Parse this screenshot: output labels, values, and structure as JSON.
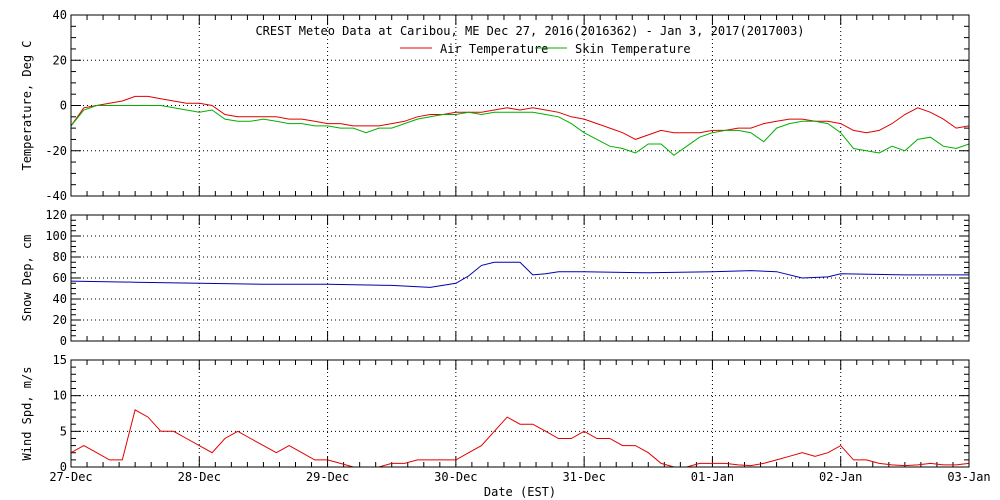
{
  "title": "CREST Meteo Data at Caribou, ME   Dec 27, 2016(2016362) - Jan  3, 2017(2017003)",
  "colors": {
    "air": "#e00000",
    "skin": "#00b000",
    "snow": "#0000b0",
    "wind": "#e00000",
    "frame": "#000000"
  },
  "chart_data": [
    {
      "type": "line",
      "ylabel": "Temperature, Deg C",
      "ylim": [
        -40,
        40
      ],
      "yticks": [
        "40",
        "20",
        "0",
        "-20",
        "-40"
      ],
      "xlim": [
        0,
        7
      ],
      "xticks": [
        "27-Dec",
        "28-Dec",
        "29-Dec",
        "30-Dec",
        "31-Dec",
        "01-Jan",
        "02-Jan",
        "03-Jan"
      ],
      "legend": {
        "placement": "top-center"
      },
      "grid": true,
      "series": [
        {
          "name": "Air Temperature",
          "color": "#e00000",
          "x": [
            0,
            0.1,
            0.2,
            0.3,
            0.4,
            0.5,
            0.6,
            0.7,
            0.8,
            0.9,
            1.0,
            1.1,
            1.2,
            1.3,
            1.4,
            1.5,
            1.6,
            1.7,
            1.8,
            1.9,
            2.0,
            2.1,
            2.2,
            2.3,
            2.4,
            2.5,
            2.6,
            2.7,
            2.8,
            2.9,
            3.0,
            3.1,
            3.2,
            3.3,
            3.4,
            3.5,
            3.6,
            3.7,
            3.8,
            3.9,
            4.0,
            4.1,
            4.2,
            4.3,
            4.4,
            4.5,
            4.6,
            4.7,
            4.8,
            4.9,
            5.0,
            5.1,
            5.2,
            5.3,
            5.4,
            5.5,
            5.6,
            5.7,
            5.8,
            5.9,
            6.0,
            6.1,
            6.2,
            6.3,
            6.4,
            6.5,
            6.6,
            6.7,
            6.8,
            6.9,
            7.0
          ],
          "y": [
            -9,
            -1,
            0,
            1,
            2,
            4,
            4,
            3,
            2,
            1,
            1,
            0,
            -4,
            -5,
            -5,
            -5,
            -5,
            -6,
            -6,
            -7,
            -8,
            -8,
            -9,
            -9,
            -9,
            -8,
            -7,
            -5,
            -4,
            -4,
            -3,
            -3,
            -3,
            -2,
            -1,
            -2,
            -1,
            -2,
            -3,
            -5,
            -6,
            -8,
            -10,
            -12,
            -15,
            -13,
            -11,
            -12,
            -12,
            -12,
            -11,
            -11,
            -10,
            -10,
            -8,
            -7,
            -6,
            -6,
            -7,
            -7,
            -8,
            -11,
            -12,
            -11,
            -8,
            -4,
            -1,
            -3,
            -6,
            -10,
            -9
          ]
        },
        {
          "name": "Skin Temperature",
          "color": "#00b000",
          "x": [
            0,
            0.1,
            0.2,
            0.3,
            0.4,
            0.5,
            0.6,
            0.7,
            0.8,
            0.9,
            1.0,
            1.1,
            1.2,
            1.3,
            1.4,
            1.5,
            1.6,
            1.7,
            1.8,
            1.9,
            2.0,
            2.1,
            2.2,
            2.3,
            2.4,
            2.5,
            2.6,
            2.7,
            2.8,
            2.9,
            3.0,
            3.1,
            3.2,
            3.3,
            3.4,
            3.5,
            3.6,
            3.7,
            3.8,
            3.9,
            4.0,
            4.1,
            4.2,
            4.3,
            4.4,
            4.5,
            4.6,
            4.7,
            4.8,
            4.9,
            5.0,
            5.1,
            5.2,
            5.3,
            5.4,
            5.5,
            5.6,
            5.7,
            5.8,
            5.9,
            6.0,
            6.1,
            6.2,
            6.3,
            6.4,
            6.5,
            6.6,
            6.7,
            6.8,
            6.9,
            7.0
          ],
          "y": [
            -9,
            -2,
            0,
            0,
            0,
            0,
            0,
            0,
            -1,
            -2,
            -3,
            -2,
            -6,
            -7,
            -7,
            -6,
            -7,
            -8,
            -8,
            -9,
            -9,
            -10,
            -10,
            -12,
            -10,
            -10,
            -8,
            -6,
            -5,
            -4,
            -4,
            -3,
            -4,
            -3,
            -3,
            -3,
            -3,
            -4,
            -5,
            -8,
            -12,
            -15,
            -18,
            -19,
            -21,
            -17,
            -17,
            -22,
            -18,
            -14,
            -12,
            -11,
            -11,
            -12,
            -16,
            -10,
            -8,
            -7,
            -7,
            -8,
            -12,
            -19,
            -20,
            -21,
            -18,
            -20,
            -15,
            -14,
            -18,
            -19,
            -17
          ]
        }
      ]
    },
    {
      "type": "line",
      "ylabel": "Snow Dep, cm",
      "ylim": [
        0,
        120
      ],
      "yticks": [
        "120",
        "100",
        "80",
        "60",
        "40",
        "20",
        "0"
      ],
      "xlim": [
        0,
        7
      ],
      "grid": true,
      "series": [
        {
          "color": "#0000b0",
          "x": [
            0,
            0.5,
            1.0,
            1.5,
            2.0,
            2.5,
            2.8,
            3.0,
            3.1,
            3.2,
            3.3,
            3.4,
            3.5,
            3.6,
            3.7,
            3.8,
            4.0,
            4.5,
            5.0,
            5.3,
            5.5,
            5.7,
            5.9,
            6.0,
            6.5,
            7.0
          ],
          "y": [
            57,
            56,
            55,
            54,
            54,
            53,
            51,
            55,
            62,
            72,
            75,
            75,
            75,
            63,
            64,
            66,
            66,
            65,
            66,
            67,
            66,
            60,
            61,
            64,
            63,
            63
          ]
        }
      ]
    },
    {
      "type": "line",
      "ylabel": "Wind Spd, m/s",
      "ylim": [
        0,
        15
      ],
      "yticks": [
        "15",
        "10",
        "5",
        "0"
      ],
      "xlim": [
        0,
        7
      ],
      "xlabel": "Date (EST)",
      "grid": true,
      "series": [
        {
          "color": "#e00000",
          "x": [
            0,
            0.1,
            0.2,
            0.3,
            0.4,
            0.5,
            0.6,
            0.7,
            0.8,
            0.9,
            1.0,
            1.1,
            1.2,
            1.3,
            1.4,
            1.5,
            1.6,
            1.7,
            1.8,
            1.9,
            2.0,
            2.1,
            2.2,
            2.3,
            2.4,
            2.5,
            2.6,
            2.7,
            2.8,
            2.9,
            3.0,
            3.1,
            3.2,
            3.3,
            3.4,
            3.5,
            3.6,
            3.7,
            3.8,
            3.9,
            4.0,
            4.1,
            4.2,
            4.3,
            4.4,
            4.5,
            4.6,
            4.7,
            4.8,
            4.9,
            5.0,
            5.1,
            5.2,
            5.3,
            5.4,
            5.5,
            5.6,
            5.7,
            5.8,
            5.9,
            6.0,
            6.1,
            6.2,
            6.3,
            6.4,
            6.5,
            6.6,
            6.7,
            6.8,
            6.9,
            7.0
          ],
          "y": [
            2,
            3,
            2,
            1,
            1,
            8,
            7,
            5,
            5,
            4,
            3,
            2,
            4,
            5,
            4,
            3,
            2,
            3,
            2,
            1,
            1,
            0.5,
            0,
            0,
            0,
            0.5,
            0.5,
            1,
            1,
            1,
            1,
            2,
            3,
            5,
            7,
            6,
            6,
            5,
            4,
            4,
            5,
            4,
            4,
            3,
            3,
            2,
            0.5,
            0,
            0,
            0.5,
            0.5,
            0.5,
            0.3,
            0.2,
            0.5,
            1,
            1.5,
            2,
            1.5,
            2,
            3,
            1,
            1,
            0.5,
            0.3,
            0.2,
            0.3,
            0.5,
            0.3,
            0.3,
            0.5
          ]
        }
      ]
    }
  ],
  "layout_panels": {
    "count": 3
  }
}
